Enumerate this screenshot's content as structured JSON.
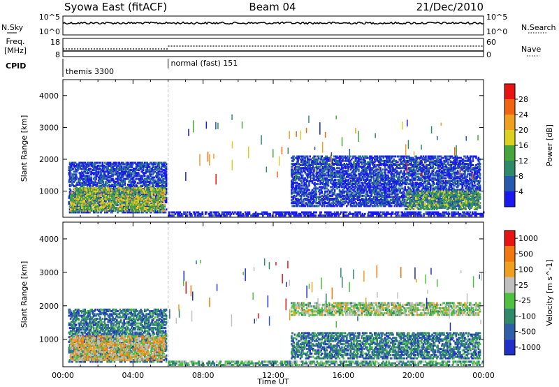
{
  "header": {
    "station": "Syowa East (fitACF)",
    "beam": "Beam 04",
    "date": "21/Dec/2010"
  },
  "strip": {
    "nsky_label": "N.Sky",
    "nsky_ticks": [
      "10^5",
      "10^0"
    ],
    "nsearch_label": "N.Search",
    "nsearch_ticks": [
      "10^5",
      "10^0"
    ],
    "freq_label_1": "Freq.",
    "freq_label_2": "[MHz]",
    "freq_ticks": [
      "18",
      "8"
    ],
    "nave_label": "Nave",
    "nave_ticks": [
      "60",
      "0"
    ],
    "cpid_label": "CPID",
    "cpid_segments": [
      {
        "start_hour": 0,
        "end_hour": 6,
        "name": "themis 3300"
      },
      {
        "start_hour": 6,
        "end_hour": 24,
        "name": "normal (fast) 151"
      }
    ]
  },
  "chart_data": [
    {
      "type": "heatmap",
      "panel": "power",
      "ylabel": "Slant Range [km]",
      "yticks": [
        "1000",
        "2000",
        "3000",
        "4000"
      ],
      "ylim": [
        180,
        4500
      ],
      "xlim": [
        0,
        24
      ],
      "colorbar_label": "Power [dB]",
      "colorbar_ticks": [
        "4",
        "8",
        "12",
        "16",
        "20",
        "24",
        "28"
      ],
      "colorbar_colors": [
        "#1a1af0",
        "#2859b0",
        "#2f8a6a",
        "#46a53c",
        "#dcd020",
        "#f0a020",
        "#f06414",
        "#e81414"
      ],
      "regions": [
        {
          "x0": 0.3,
          "x1": 5.9,
          "y0": 300,
          "y1": 1900,
          "level": 1
        },
        {
          "x0": 0.4,
          "x1": 5.8,
          "y0": 350,
          "y1": 1100,
          "level": 4
        },
        {
          "x0": 6.0,
          "x1": 24.0,
          "y0": 200,
          "y1": 350,
          "level": 0
        },
        {
          "x0": 13.0,
          "x1": 23.8,
          "y0": 500,
          "y1": 2100,
          "level": 1
        },
        {
          "x0": 19.5,
          "x1": 23.8,
          "y0": 400,
          "y1": 1000,
          "level": 3
        }
      ]
    },
    {
      "type": "heatmap",
      "panel": "velocity",
      "xlabel": "Time UT",
      "xticks": [
        "00:00",
        "04:00",
        "08:00",
        "12:00",
        "16:00",
        "20:00",
        "00:00"
      ],
      "ylabel": "Slant Range [km]",
      "yticks": [
        "1000",
        "2000",
        "3000",
        "4000"
      ],
      "ylim": [
        180,
        4500
      ],
      "xlim": [
        0,
        24
      ],
      "colorbar_label": "Velocity [m s^-1]",
      "colorbar_ticks": [
        "1000",
        "500",
        "100",
        "25",
        "-25",
        "-100",
        "-500",
        "-1000"
      ],
      "colorbar_colors": [
        "#2030c8",
        "#2f5fa8",
        "#2f8a6a",
        "#50c040",
        "#c0c0c0",
        "#f0a020",
        "#f07810",
        "#e81414"
      ],
      "regions": [
        {
          "x0": 0.3,
          "x1": 5.9,
          "y0": 300,
          "y1": 1900,
          "level": 2
        },
        {
          "x0": 0.4,
          "x1": 5.8,
          "y0": 350,
          "y1": 1100,
          "level": 5
        },
        {
          "x0": 6.0,
          "x1": 24.0,
          "y0": 200,
          "y1": 350,
          "level": 3
        },
        {
          "x0": 13.0,
          "x1": 23.8,
          "y0": 1700,
          "y1": 2100,
          "level": 4
        },
        {
          "x0": 13.0,
          "x1": 23.8,
          "y0": 400,
          "y1": 1200,
          "level": 2
        }
      ]
    }
  ]
}
